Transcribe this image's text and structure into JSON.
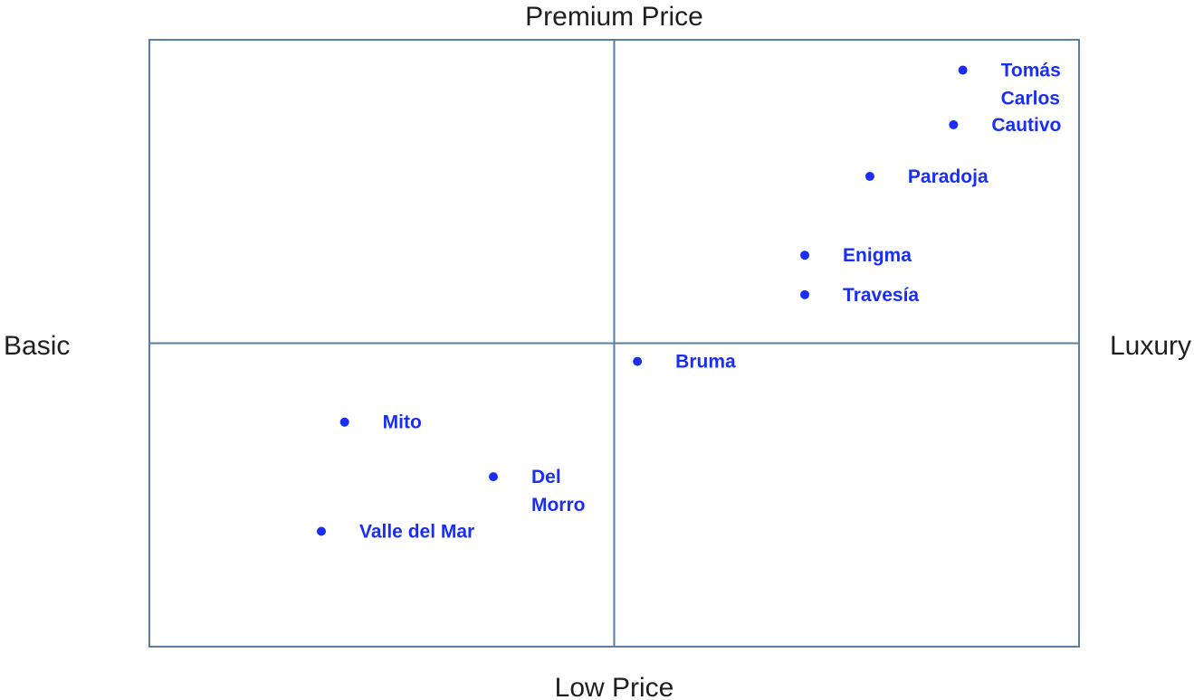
{
  "chart_data": {
    "type": "scatter",
    "title": "",
    "axes": {
      "top": "Premium Price",
      "bottom": "Low Price",
      "left": "Basic",
      "right": "Luxury"
    },
    "xlim": [
      -10,
      10
    ],
    "ylim": [
      -10,
      10
    ],
    "grid": "quadrant lines at x=0 and y=0",
    "series": [
      {
        "points": [
          {
            "label": "Tomás Carlos",
            "lines": [
              "Tomás",
              "Carlos"
            ],
            "x": 7.5,
            "y": 9.0
          },
          {
            "label": "Cautivo",
            "lines": [
              "Cautivo"
            ],
            "x": 7.3,
            "y": 7.2
          },
          {
            "label": "Paradoja",
            "lines": [
              "Paradoja"
            ],
            "x": 5.5,
            "y": 5.5
          },
          {
            "label": "Enigma",
            "lines": [
              "Enigma"
            ],
            "x": 4.1,
            "y": 2.9
          },
          {
            "label": "Travesía",
            "lines": [
              "Travesía"
            ],
            "x": 4.1,
            "y": 1.6
          },
          {
            "label": "Bruma",
            "lines": [
              "Bruma"
            ],
            "x": 0.5,
            "y": -0.6
          },
          {
            "label": "Mito",
            "lines": [
              "Mito"
            ],
            "x": -5.8,
            "y": -2.6
          },
          {
            "label": "Del Morro",
            "lines": [
              "Del",
              "Morro"
            ],
            "x": -2.6,
            "y": -4.4
          },
          {
            "label": "Valle del Mar",
            "lines": [
              "Valle del Mar"
            ],
            "x": -6.3,
            "y": -6.2
          }
        ]
      }
    ]
  },
  "colors": {
    "frame": "#5a7fa3",
    "point": "#1a2ef5",
    "label": "#1a2ef5",
    "axis_text": "#1f1f1f"
  }
}
